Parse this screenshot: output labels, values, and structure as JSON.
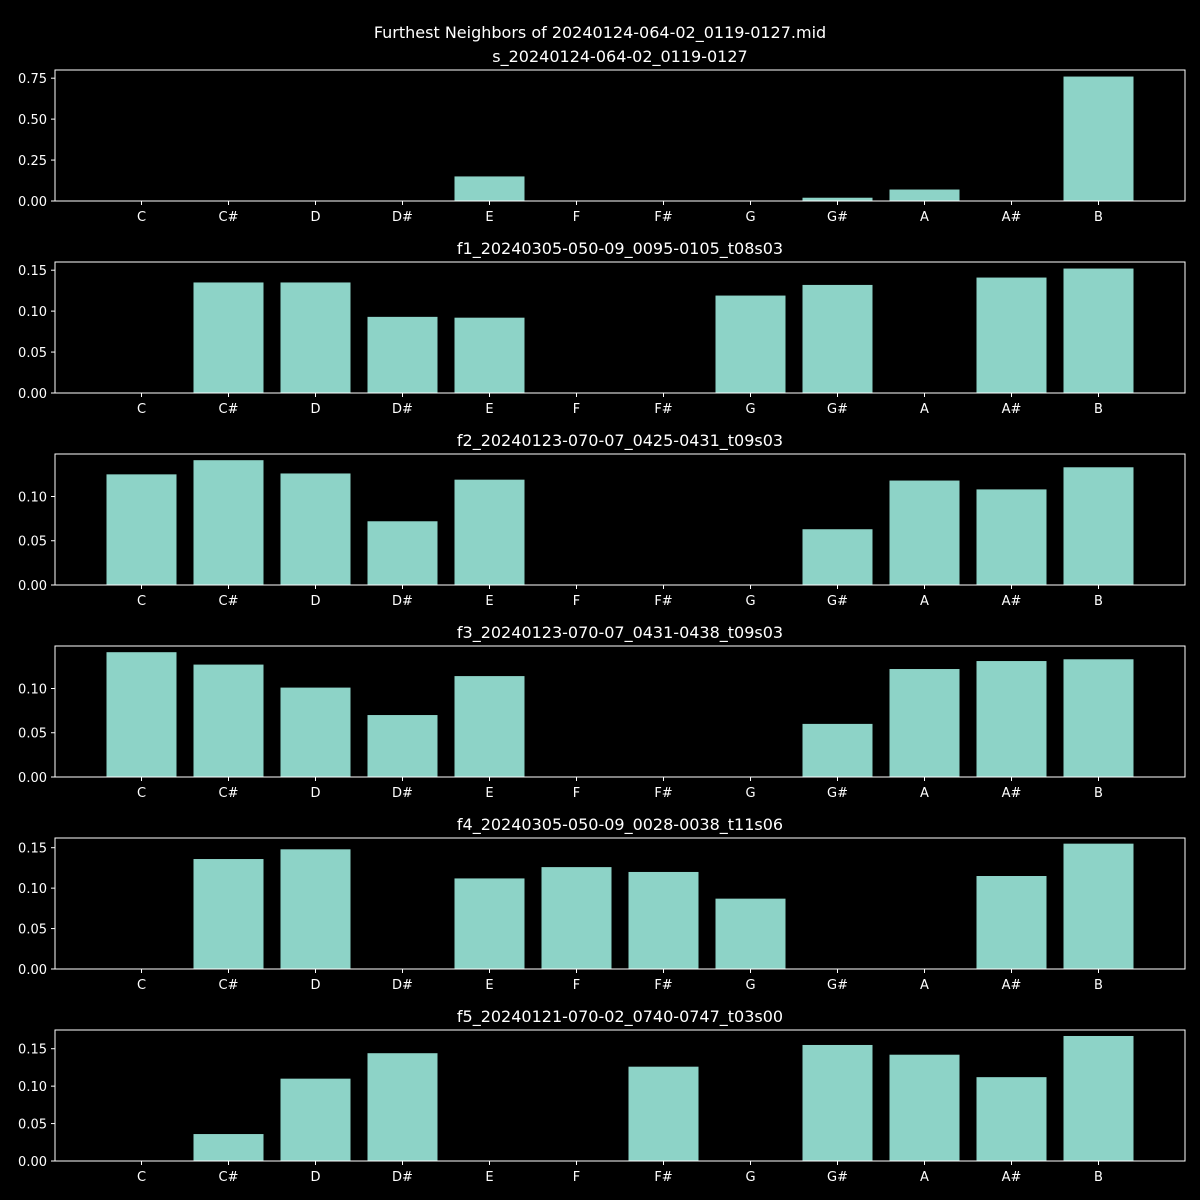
{
  "figure": {
    "title": "Furthest Neighbors of 20240124-064-02_0119-0127.mid",
    "background": "#000000",
    "axis_color": "#ffffff",
    "bar_color": "#8dd3c7"
  },
  "chart_data": [
    {
      "type": "bar",
      "title": "s_20240124-064-02_0119-0127",
      "xlabel": "",
      "ylabel": "",
      "categories": [
        "C",
        "C#",
        "D",
        "D#",
        "E",
        "F",
        "F#",
        "G",
        "G#",
        "A",
        "A#",
        "B"
      ],
      "values": [
        0,
        0,
        0,
        0,
        0.15,
        0,
        0,
        0,
        0.02,
        0.07,
        0,
        0.76
      ],
      "ylim": [
        0,
        0.8
      ],
      "yticks": [
        0,
        0.25,
        0.5,
        0.75
      ],
      "ytick_labels": [
        "0.00",
        "0.25",
        "0.50",
        "0.75"
      ]
    },
    {
      "type": "bar",
      "title": "f1_20240305-050-09_0095-0105_t08s03",
      "xlabel": "",
      "ylabel": "",
      "categories": [
        "C",
        "C#",
        "D",
        "D#",
        "E",
        "F",
        "F#",
        "G",
        "G#",
        "A",
        "A#",
        "B"
      ],
      "values": [
        0,
        0.135,
        0.135,
        0.093,
        0.092,
        0,
        0,
        0.119,
        0.132,
        0,
        0.141,
        0.152
      ],
      "ylim": [
        0,
        0.16
      ],
      "yticks": [
        0,
        0.05,
        0.1,
        0.15
      ],
      "ytick_labels": [
        "0.00",
        "0.05",
        "0.10",
        "0.15"
      ]
    },
    {
      "type": "bar",
      "title": "f2_20240123-070-07_0425-0431_t09s03",
      "xlabel": "",
      "ylabel": "",
      "categories": [
        "C",
        "C#",
        "D",
        "D#",
        "E",
        "F",
        "F#",
        "G",
        "G#",
        "A",
        "A#",
        "B"
      ],
      "values": [
        0.125,
        0.141,
        0.126,
        0.072,
        0.119,
        0,
        0,
        0,
        0.063,
        0.118,
        0.108,
        0.133
      ],
      "ylim": [
        0,
        0.148
      ],
      "yticks": [
        0,
        0.05,
        0.1
      ],
      "ytick_labels": [
        "0.00",
        "0.05",
        "0.10"
      ]
    },
    {
      "type": "bar",
      "title": "f3_20240123-070-07_0431-0438_t09s03",
      "xlabel": "",
      "ylabel": "",
      "categories": [
        "C",
        "C#",
        "D",
        "D#",
        "E",
        "F",
        "F#",
        "G",
        "G#",
        "A",
        "A#",
        "B"
      ],
      "values": [
        0.141,
        0.127,
        0.101,
        0.07,
        0.114,
        0,
        0,
        0,
        0.06,
        0.122,
        0.131,
        0.133
      ],
      "ylim": [
        0,
        0.148
      ],
      "yticks": [
        0,
        0.05,
        0.1
      ],
      "ytick_labels": [
        "0.00",
        "0.05",
        "0.10"
      ]
    },
    {
      "type": "bar",
      "title": "f4_20240305-050-09_0028-0038_t11s06",
      "xlabel": "",
      "ylabel": "",
      "categories": [
        "C",
        "C#",
        "D",
        "D#",
        "E",
        "F",
        "F#",
        "G",
        "G#",
        "A",
        "A#",
        "B"
      ],
      "values": [
        0,
        0.136,
        0.148,
        0,
        0.112,
        0.126,
        0.12,
        0.087,
        0,
        0,
        0.115,
        0.155
      ],
      "ylim": [
        0,
        0.162
      ],
      "yticks": [
        0,
        0.05,
        0.1,
        0.15
      ],
      "ytick_labels": [
        "0.00",
        "0.05",
        "0.10",
        "0.15"
      ]
    },
    {
      "type": "bar",
      "title": "f5_20240121-070-02_0740-0747_t03s00",
      "xlabel": "",
      "ylabel": "",
      "categories": [
        "C",
        "C#",
        "D",
        "D#",
        "E",
        "F",
        "F#",
        "G",
        "G#",
        "A",
        "A#",
        "B"
      ],
      "values": [
        0,
        0.036,
        0.11,
        0.144,
        0,
        0,
        0.126,
        0,
        0.155,
        0.142,
        0.112,
        0.167
      ],
      "ylim": [
        0,
        0.175
      ],
      "yticks": [
        0,
        0.05,
        0.1,
        0.15
      ],
      "ytick_labels": [
        "0.00",
        "0.05",
        "0.10",
        "0.15"
      ]
    }
  ]
}
